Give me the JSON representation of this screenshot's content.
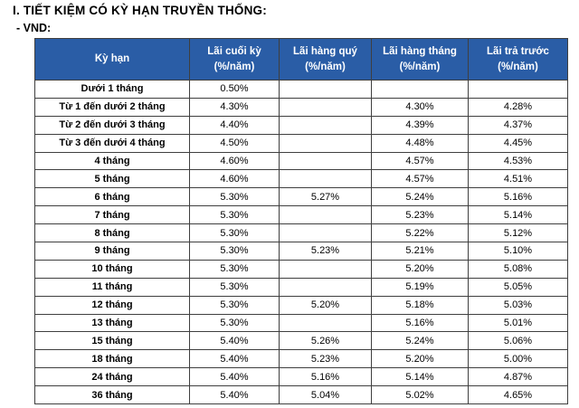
{
  "page": {
    "title": "I. TIẾT KIỆM CÓ KỲ HẠN TRUYỀN THỐNG:",
    "subtitle": "- VND:"
  },
  "colors": {
    "header_bg": "#2A5DA6",
    "header_text": "#FFFFFF",
    "border": "#3F3F3F"
  },
  "table": {
    "columns": [
      {
        "label": "Kỳ hạn",
        "sub": ""
      },
      {
        "label": "Lãi cuối kỳ",
        "sub": "(%/năm)"
      },
      {
        "label": "Lãi hàng quý",
        "sub": "(%/năm)"
      },
      {
        "label": "Lãi hàng tháng",
        "sub": "(%/năm)"
      },
      {
        "label": "Lãi trả trước",
        "sub": "(%/năm)"
      }
    ],
    "rows": [
      [
        "Dưới 1 tháng",
        "0.50%",
        "",
        "",
        ""
      ],
      [
        "Từ 1 đến dưới 2 tháng",
        "4.30%",
        "",
        "4.30%",
        "4.28%"
      ],
      [
        "Từ 2 đến dưới 3 tháng",
        "4.40%",
        "",
        "4.39%",
        "4.37%"
      ],
      [
        "Từ 3 đến dưới 4 tháng",
        "4.50%",
        "",
        "4.48%",
        "4.45%"
      ],
      [
        "4 tháng",
        "4.60%",
        "",
        "4.57%",
        "4.53%"
      ],
      [
        "5 tháng",
        "4.60%",
        "",
        "4.57%",
        "4.51%"
      ],
      [
        "6 tháng",
        "5.30%",
        "5.27%",
        "5.24%",
        "5.16%"
      ],
      [
        "7 tháng",
        "5.30%",
        "",
        "5.23%",
        "5.14%"
      ],
      [
        "8 tháng",
        "5.30%",
        "",
        "5.22%",
        "5.12%"
      ],
      [
        "9 tháng",
        "5.30%",
        "5.23%",
        "5.21%",
        "5.10%"
      ],
      [
        "10 tháng",
        "5.30%",
        "",
        "5.20%",
        "5.08%"
      ],
      [
        "11 tháng",
        "5.30%",
        "",
        "5.19%",
        "5.05%"
      ],
      [
        "12 tháng",
        "5.30%",
        "5.20%",
        "5.18%",
        "5.03%"
      ],
      [
        "13 tháng",
        "5.30%",
        "",
        "5.16%",
        "5.01%"
      ],
      [
        "15 tháng",
        "5.40%",
        "5.26%",
        "5.24%",
        "5.06%"
      ],
      [
        "18 tháng",
        "5.40%",
        "5.23%",
        "5.20%",
        "5.00%"
      ],
      [
        "24 tháng",
        "5.40%",
        "5.16%",
        "5.14%",
        "4.87%"
      ],
      [
        "36 tháng",
        "5.40%",
        "5.04%",
        "5.02%",
        "4.65%"
      ]
    ]
  }
}
